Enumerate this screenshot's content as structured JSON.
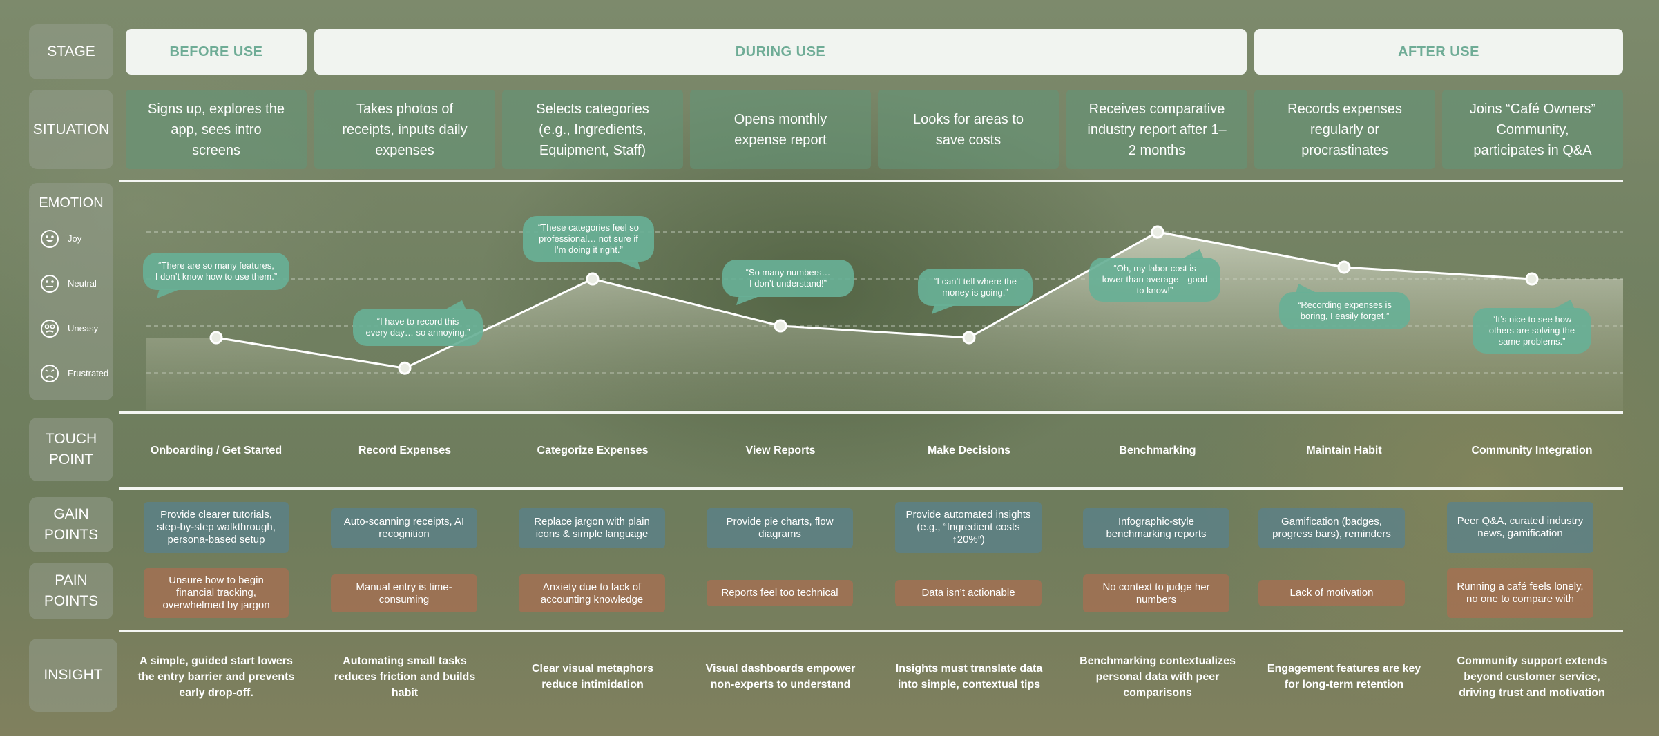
{
  "row_labels": {
    "stage": "STAGE",
    "situation": "SITUATION",
    "emotion": "EMOTION",
    "touch_point": "TOUCH\nPOINT",
    "gain_points": "GAIN\nPOINTS",
    "pain_points": "PAIN\nPOINTS",
    "insight": "INSIGHT"
  },
  "stages": [
    "BEFORE USE",
    "DURING USE",
    "AFTER USE"
  ],
  "emotion_levels": [
    {
      "label": "Joy",
      "icon": "joy-face-icon"
    },
    {
      "label": "Neutral",
      "icon": "neutral-face-icon"
    },
    {
      "label": "Uneasy",
      "icon": "uneasy-face-icon"
    },
    {
      "label": "Frustrated",
      "icon": "frustrated-face-icon"
    }
  ],
  "steps": [
    {
      "situation": "Signs up, explores the app, sees intro screens",
      "emotion": "Neutral-Uneasy",
      "emotion_value": 0.75,
      "quote": "“There are so many features, I don’t know how to use them.”",
      "touch_point": "Onboarding / Get Started",
      "gain": "Provide clearer tutorials, step-by-step walkthrough, persona-based setup",
      "pain": "Unsure how to begin financial tracking, overwhelmed by jargon",
      "insight": "A simple, guided start lowers the entry barrier and prevents early drop-off."
    },
    {
      "situation": "Takes photos of receipts, inputs daily expenses",
      "emotion": "Frustrated",
      "emotion_value": 0.1,
      "quote": "“I have to record this every day… so annoying.”",
      "touch_point": "Record Expenses",
      "gain": "Auto-scanning receipts, AI recognition",
      "pain": "Manual entry is time-consuming",
      "insight": "Automating small tasks reduces friction and builds habit"
    },
    {
      "situation": "Selects categories (e.g., Ingredients, Equipment, Staff)",
      "emotion": "Neutral",
      "emotion_value": 2.0,
      "quote": "“These categories feel so professional… not sure if I’m doing it right.”",
      "touch_point": "Categorize Expenses",
      "gain": "Replace jargon with plain icons & simple language",
      "pain": "Anxiety due to lack of accounting knowledge",
      "insight": "Clear visual metaphors reduce intimidation"
    },
    {
      "situation": "Opens monthly expense report",
      "emotion": "Uneasy",
      "emotion_value": 1.0,
      "quote": "“So many numbers… I don’t understand!”",
      "touch_point": "View Reports",
      "gain": "Provide pie charts, flow diagrams",
      "pain": "Reports feel too technical",
      "insight": "Visual dashboards empower non-experts to understand"
    },
    {
      "situation": "Looks for areas to save costs",
      "emotion": "Uneasy",
      "emotion_value": 0.75,
      "quote": "“I can’t tell where the money is going.”",
      "touch_point": "Make Decisions",
      "gain": "Provide automated insights (e.g., “Ingredient costs ↑20%”)",
      "pain": "Data isn’t actionable",
      "insight": "Insights must translate data into simple, contextual tips"
    },
    {
      "situation": "Receives comparative industry report after 1–2 months",
      "emotion": "Joy",
      "emotion_value": 3.0,
      "quote": "“Oh, my labor cost is lower than average—good to know!”",
      "touch_point": "Benchmarking",
      "gain": "Infographic-style benchmarking reports",
      "pain": "No context to judge her numbers",
      "insight": "Benchmarking contextualizes personal data with peer comparisons"
    },
    {
      "situation": "Records expenses regularly or procrastinates",
      "emotion": "Neutral",
      "emotion_value": 2.25,
      "quote": "“Recording expenses is boring, I easily forget.”",
      "touch_point": "Maintain Habit",
      "gain": "Gamification (badges, progress bars), reminders",
      "pain": "Lack of motivation",
      "insight": "Engagement features are key for long-term retention"
    },
    {
      "situation": "Joins “Café Owners” Community, participates in Q&A",
      "emotion": "Neutral",
      "emotion_value": 2.0,
      "quote": "“It’s nice to see how others are solving the same problems.”",
      "touch_point": "Community Integration",
      "gain": "Peer Q&A, curated industry news, gamification",
      "pain": "Running a café feels lonely, no one to compare with",
      "insight": "Community support extends beyond customer service, driving trust and motivation"
    }
  ],
  "colors": {
    "stage_text": "#6fac96",
    "stage_bg": "#f1f4f0",
    "situation_bg": "#629678",
    "bubble": "#6fb098",
    "gain_bg": "#5a828c",
    "pain_bg": "#aa6e50",
    "line": "#ffffff"
  }
}
